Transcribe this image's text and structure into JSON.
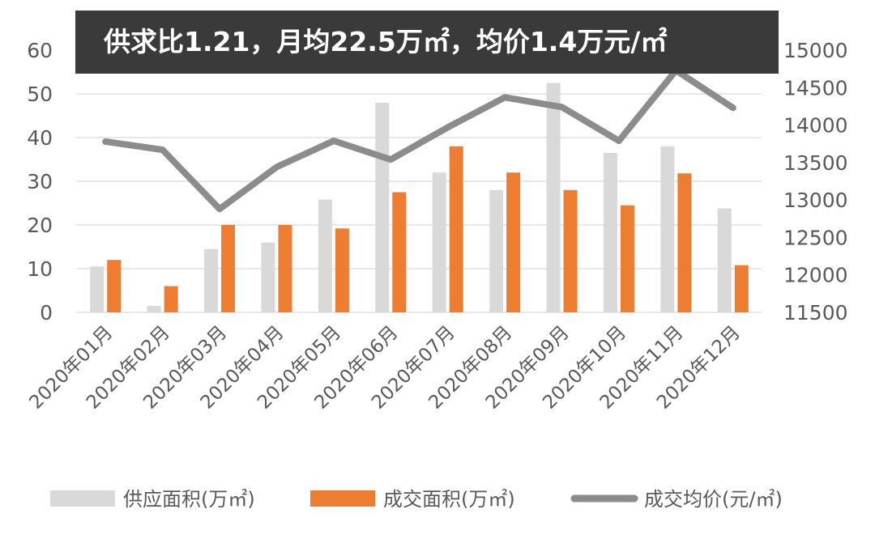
{
  "chart_data": {
    "type": "bar",
    "title": "供求比1.21，月均22.5万㎡，均价1.4万元/㎡",
    "categories": [
      "2020年01月",
      "2020年02月",
      "2020年03月",
      "2020年04月",
      "2020年05月",
      "2020年06月",
      "2020年07月",
      "2020年08月",
      "2020年09月",
      "2020年10月",
      "2020年11月",
      "2020年12月"
    ],
    "series": [
      {
        "name": "供应面积(万㎡)",
        "type": "bar",
        "axis": "left",
        "color": "#d9d9d9",
        "values": [
          10.5,
          1.5,
          14.5,
          16,
          25.8,
          48,
          32,
          28,
          52.5,
          36.5,
          38,
          23.8
        ]
      },
      {
        "name": "成交面积(万㎡)",
        "type": "bar",
        "axis": "left",
        "color": "#ed7d31",
        "values": [
          12,
          6,
          20,
          20,
          19.2,
          27.5,
          38,
          32,
          28,
          24.5,
          31.8,
          10.8
        ]
      },
      {
        "name": "成交均价(元/㎡)",
        "type": "line",
        "axis": "right",
        "color": "#8c8c8c",
        "values": [
          13780,
          13670,
          12880,
          13440,
          13790,
          13540,
          13970,
          14370,
          14240,
          13790,
          14730,
          14230
        ]
      }
    ],
    "y_left": {
      "ylim": [
        0,
        60
      ],
      "ticks": [
        "0",
        "10",
        "20",
        "30",
        "40",
        "50",
        "60"
      ]
    },
    "y_right": {
      "ylim": [
        11500,
        15000
      ],
      "ticks": [
        "11500",
        "12000",
        "12500",
        "13000",
        "13500",
        "14000",
        "14500",
        "15000"
      ]
    },
    "grid": true,
    "legend_position": "bottom"
  }
}
